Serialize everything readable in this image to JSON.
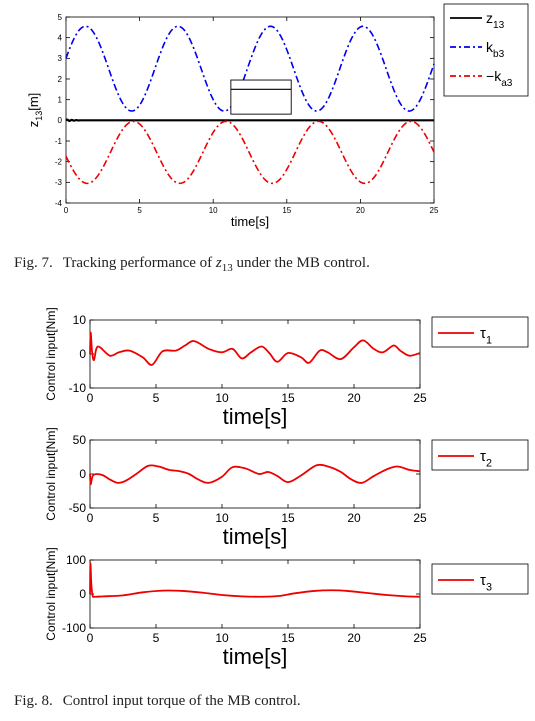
{
  "fig7": {
    "caption_number": "Fig. 7.",
    "caption_text_before": "Tracking performance of ",
    "caption_math": "z",
    "caption_math_sub": "13",
    "caption_text_after": " under the MB control."
  },
  "fig8": {
    "caption_number": "Fig. 8.",
    "caption_text": "Control input torque of the MB control."
  },
  "chart_data": [
    {
      "type": "line",
      "xlabel": "time[s]",
      "ylabel": "z",
      "ylabel_sub": "13",
      "ylabel_unit": "[m]",
      "xlim": [
        0,
        25
      ],
      "ylim": [
        -4,
        5
      ],
      "xticks": [
        0,
        5,
        10,
        15,
        20,
        25
      ],
      "yticks": [
        -4,
        -3,
        -2,
        -1,
        0,
        1,
        2,
        3,
        4,
        5
      ],
      "legend_position": "outside-top-right",
      "inset_zoom_box": true,
      "series": [
        {
          "name": "z",
          "name_sub": "13",
          "name_prefix": "",
          "color": "#000000",
          "style": "solid",
          "model": "z13 ≈ 0",
          "x": [
            0,
            0.3,
            0.6,
            1,
            5,
            10,
            15,
            20,
            25
          ],
          "values": [
            0,
            -0.05,
            0.03,
            0,
            0,
            0,
            0,
            0,
            0
          ]
        },
        {
          "name": "k",
          "name_sub": "b3",
          "name_prefix": "",
          "color": "#0000ee",
          "style": "dashdot",
          "model": "2.5 + 2.05*sin(x + 0.245)",
          "x": [
            0,
            1.33,
            4.47,
            7.61,
            10.75,
            13.9,
            17.04,
            20.18,
            23.32,
            25
          ],
          "values": [
            3.0,
            0.45,
            4.55,
            0.45,
            4.55,
            0.45,
            4.55,
            0.45,
            4.55,
            3.3
          ]
        },
        {
          "name": "k",
          "name_sub": "a3",
          "name_prefix": "−",
          "color": "#ee0000",
          "style": "dashdot",
          "model": "-1.55 - 1.5*sin(x + 0.125)",
          "x": [
            0,
            1.45,
            4.59,
            7.73,
            10.87,
            14.01,
            17.15,
            20.29,
            23.44,
            25
          ],
          "values": [
            -1.75,
            -3.05,
            -0.05,
            -3.05,
            -0.05,
            -3.05,
            -0.05,
            -3.05,
            -0.05,
            -1.4
          ]
        }
      ]
    },
    {
      "type": "line",
      "xlabel": "time[s]",
      "ylabel": "Control input[Nm]",
      "xlim": [
        0,
        25
      ],
      "ylim": [
        -10,
        10
      ],
      "xticks": [
        0,
        5,
        10,
        15,
        20,
        25
      ],
      "yticks": [
        -10,
        0,
        10
      ],
      "legend_position": "outside-right",
      "series": [
        {
          "name": "τ",
          "name_sub": "1",
          "color": "#ee0000",
          "x": [
            0,
            0.05,
            0.15,
            0.3,
            0.6,
            1.5,
            2.2,
            3.0,
            4.0,
            4.7,
            5.5,
            6.5,
            7.2,
            7.9,
            9.0,
            10.0,
            10.8,
            11.5,
            12.2,
            13.0,
            13.6,
            14.2,
            15.0,
            16.0,
            16.6,
            17.4,
            18.0,
            19.0,
            20.0,
            20.7,
            21.5,
            22.2,
            23.0,
            23.5,
            24.2,
            25.0
          ],
          "values": [
            0,
            6.3,
            1.0,
            -1.8,
            2.2,
            -0.5,
            0.5,
            1.0,
            -1.0,
            -3.2,
            0.8,
            1.0,
            2.5,
            3.8,
            1.5,
            0.5,
            1.5,
            -1.3,
            0.5,
            2.2,
            0.2,
            -2.3,
            0.3,
            -1.0,
            -2.6,
            1.0,
            0.5,
            -1.5,
            2.0,
            4.0,
            1.5,
            0.5,
            2.5,
            1.0,
            -0.5,
            0.3
          ]
        }
      ]
    },
    {
      "type": "line",
      "xlabel": "time[s]",
      "ylabel": "Control input[Nm]",
      "xlim": [
        0,
        25
      ],
      "ylim": [
        -50,
        50
      ],
      "xticks": [
        0,
        5,
        10,
        15,
        20,
        25
      ],
      "yticks": [
        -50,
        0,
        50
      ],
      "legend_position": "outside-right",
      "series": [
        {
          "name": "τ",
          "name_sub": "2",
          "color": "#ee0000",
          "x": [
            0,
            0.05,
            0.2,
            0.5,
            1.0,
            1.5,
            2.1,
            2.7,
            3.5,
            4.4,
            5.2,
            6.0,
            6.8,
            7.5,
            8.2,
            9.0,
            10.0,
            10.8,
            11.8,
            12.8,
            13.5,
            14.2,
            15.0,
            16.0,
            17.2,
            18.2,
            19.0,
            19.8,
            20.6,
            21.5,
            22.5,
            23.3,
            24.2,
            25.0
          ],
          "values": [
            0,
            -15,
            -3,
            0,
            -2,
            -8,
            -13,
            -10,
            0,
            12,
            11,
            6,
            4,
            0,
            -8,
            -13,
            -4,
            10,
            8,
            0,
            3,
            -3,
            -12,
            -2,
            13,
            10,
            3,
            -8,
            -13,
            -3,
            7,
            11,
            6,
            4
          ]
        }
      ]
    },
    {
      "type": "line",
      "xlabel": "time[s]",
      "ylabel": "Control input[Nm]",
      "xlim": [
        0,
        25
      ],
      "ylim": [
        -100,
        100
      ],
      "xticks": [
        0,
        5,
        10,
        15,
        20,
        25
      ],
      "yticks": [
        -100,
        0,
        100
      ],
      "legend_position": "outside-right",
      "series": [
        {
          "name": "τ",
          "name_sub": "3",
          "color": "#ee0000",
          "x": [
            0,
            0.03,
            0.1,
            0.2,
            0.35,
            1.0,
            2.5,
            4.0,
            5.5,
            7.0,
            8.5,
            10.0,
            11.5,
            13.0,
            14.3,
            15.5,
            17.0,
            18.3,
            19.5,
            21.0,
            22.5,
            24.0,
            25.0
          ],
          "values": [
            0,
            90,
            30,
            -5,
            -8,
            -7,
            -4,
            5,
            10,
            9,
            4,
            -3,
            -7,
            -8,
            -6,
            2,
            9,
            11,
            9,
            3,
            -3,
            -7,
            -8
          ]
        }
      ]
    }
  ]
}
